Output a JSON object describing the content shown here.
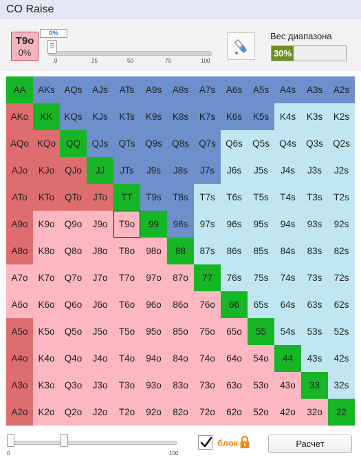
{
  "window": {
    "title": "CO Raise"
  },
  "selected_hand": {
    "name": "T9o",
    "percent": "0%"
  },
  "frequency_slider": {
    "value_label": "0%",
    "value": 0,
    "ticks": [
      "0",
      "25",
      "50",
      "75",
      "100"
    ]
  },
  "weight": {
    "label": "Вес диапазона",
    "value_label": "30%",
    "value": 30
  },
  "grid": {
    "colors": {
      "g": "#17b626",
      "b": "#6d8fcc",
      "c": "#c0e7f1",
      "r": "#de6d6f",
      "p": "#fcb7c0"
    },
    "selected": "T9o",
    "rows": [
      [
        [
          "AA",
          "g"
        ],
        [
          "AKs",
          "b"
        ],
        [
          "AQs",
          "b"
        ],
        [
          "AJs",
          "b"
        ],
        [
          "ATs",
          "b"
        ],
        [
          "A9s",
          "b"
        ],
        [
          "A8s",
          "b"
        ],
        [
          "A7s",
          "b"
        ],
        [
          "A6s",
          "b"
        ],
        [
          "A5s",
          "b"
        ],
        [
          "A4s",
          "b"
        ],
        [
          "A3s",
          "b"
        ],
        [
          "A2s",
          "b"
        ]
      ],
      [
        [
          "AKo",
          "r"
        ],
        [
          "KK",
          "g"
        ],
        [
          "KQs",
          "b"
        ],
        [
          "KJs",
          "b"
        ],
        [
          "KTs",
          "b"
        ],
        [
          "K9s",
          "b"
        ],
        [
          "K8s",
          "b"
        ],
        [
          "K7s",
          "b"
        ],
        [
          "K6s",
          "b"
        ],
        [
          "K5s",
          "b"
        ],
        [
          "K4s",
          "c"
        ],
        [
          "K3s",
          "c"
        ],
        [
          "K2s",
          "c"
        ]
      ],
      [
        [
          "AQo",
          "r"
        ],
        [
          "KQo",
          "r"
        ],
        [
          "QQ",
          "g"
        ],
        [
          "QJs",
          "b"
        ],
        [
          "QTs",
          "b"
        ],
        [
          "Q9s",
          "b"
        ],
        [
          "Q8s",
          "b"
        ],
        [
          "Q7s",
          "b"
        ],
        [
          "Q6s",
          "c"
        ],
        [
          "Q5s",
          "c"
        ],
        [
          "Q4s",
          "c"
        ],
        [
          "Q3s",
          "c"
        ],
        [
          "Q2s",
          "c"
        ]
      ],
      [
        [
          "AJo",
          "r"
        ],
        [
          "KJo",
          "r"
        ],
        [
          "QJo",
          "r"
        ],
        [
          "JJ",
          "g"
        ],
        [
          "JTs",
          "b"
        ],
        [
          "J9s",
          "b"
        ],
        [
          "J8s",
          "b"
        ],
        [
          "J7s",
          "b"
        ],
        [
          "J6s",
          "c"
        ],
        [
          "J5s",
          "c"
        ],
        [
          "J4s",
          "c"
        ],
        [
          "J3s",
          "c"
        ],
        [
          "J2s",
          "c"
        ]
      ],
      [
        [
          "ATo",
          "r"
        ],
        [
          "KTo",
          "r"
        ],
        [
          "QTo",
          "r"
        ],
        [
          "JTo",
          "r"
        ],
        [
          "TT",
          "g"
        ],
        [
          "T9s",
          "b"
        ],
        [
          "T8s",
          "b"
        ],
        [
          "T7s",
          "c"
        ],
        [
          "T6s",
          "c"
        ],
        [
          "T5s",
          "c"
        ],
        [
          "T4s",
          "c"
        ],
        [
          "T3s",
          "c"
        ],
        [
          "T2s",
          "c"
        ]
      ],
      [
        [
          "A9o",
          "r"
        ],
        [
          "K9o",
          "p"
        ],
        [
          "Q9o",
          "p"
        ],
        [
          "J9o",
          "p"
        ],
        [
          "T9o",
          "p"
        ],
        [
          "99",
          "g"
        ],
        [
          "98s",
          "b"
        ],
        [
          "97s",
          "c"
        ],
        [
          "96s",
          "c"
        ],
        [
          "95s",
          "c"
        ],
        [
          "94s",
          "c"
        ],
        [
          "93s",
          "c"
        ],
        [
          "92s",
          "c"
        ]
      ],
      [
        [
          "A8o",
          "r"
        ],
        [
          "K8o",
          "p"
        ],
        [
          "Q8o",
          "p"
        ],
        [
          "J8o",
          "p"
        ],
        [
          "T8o",
          "p"
        ],
        [
          "98o",
          "p"
        ],
        [
          "88",
          "g"
        ],
        [
          "87s",
          "c"
        ],
        [
          "86s",
          "c"
        ],
        [
          "85s",
          "c"
        ],
        [
          "84s",
          "c"
        ],
        [
          "83s",
          "c"
        ],
        [
          "82s",
          "c"
        ]
      ],
      [
        [
          "A7o",
          "p"
        ],
        [
          "K7o",
          "p"
        ],
        [
          "Q7o",
          "p"
        ],
        [
          "J7o",
          "p"
        ],
        [
          "T7o",
          "p"
        ],
        [
          "97o",
          "p"
        ],
        [
          "87o",
          "p"
        ],
        [
          "77",
          "g"
        ],
        [
          "76s",
          "c"
        ],
        [
          "75s",
          "c"
        ],
        [
          "74s",
          "c"
        ],
        [
          "73s",
          "c"
        ],
        [
          "72s",
          "c"
        ]
      ],
      [
        [
          "A6o",
          "p"
        ],
        [
          "K6o",
          "p"
        ],
        [
          "Q6o",
          "p"
        ],
        [
          "J6o",
          "p"
        ],
        [
          "T6o",
          "p"
        ],
        [
          "96o",
          "p"
        ],
        [
          "86o",
          "p"
        ],
        [
          "76o",
          "p"
        ],
        [
          "66",
          "g"
        ],
        [
          "65s",
          "c"
        ],
        [
          "64s",
          "c"
        ],
        [
          "63s",
          "c"
        ],
        [
          "62s",
          "c"
        ]
      ],
      [
        [
          "A5o",
          "r"
        ],
        [
          "K5o",
          "p"
        ],
        [
          "Q5o",
          "p"
        ],
        [
          "J5o",
          "p"
        ],
        [
          "T5o",
          "p"
        ],
        [
          "95o",
          "p"
        ],
        [
          "85o",
          "p"
        ],
        [
          "75o",
          "p"
        ],
        [
          "65o",
          "p"
        ],
        [
          "55",
          "g"
        ],
        [
          "54s",
          "c"
        ],
        [
          "53s",
          "c"
        ],
        [
          "52s",
          "c"
        ]
      ],
      [
        [
          "A4o",
          "r"
        ],
        [
          "K4o",
          "p"
        ],
        [
          "Q4o",
          "p"
        ],
        [
          "J4o",
          "p"
        ],
        [
          "T4o",
          "p"
        ],
        [
          "94o",
          "p"
        ],
        [
          "84o",
          "p"
        ],
        [
          "74o",
          "p"
        ],
        [
          "64o",
          "p"
        ],
        [
          "54o",
          "p"
        ],
        [
          "44",
          "g"
        ],
        [
          "43s",
          "c"
        ],
        [
          "42s",
          "c"
        ]
      ],
      [
        [
          "A3o",
          "r"
        ],
        [
          "K3o",
          "p"
        ],
        [
          "Q3o",
          "p"
        ],
        [
          "J3o",
          "p"
        ],
        [
          "T3o",
          "p"
        ],
        [
          "93o",
          "p"
        ],
        [
          "83o",
          "p"
        ],
        [
          "73o",
          "p"
        ],
        [
          "63o",
          "p"
        ],
        [
          "53o",
          "p"
        ],
        [
          "43o",
          "p"
        ],
        [
          "33",
          "g"
        ],
        [
          "32s",
          "c"
        ]
      ],
      [
        [
          "A2o",
          "r"
        ],
        [
          "K2o",
          "p"
        ],
        [
          "Q2o",
          "p"
        ],
        [
          "J2o",
          "p"
        ],
        [
          "T2o",
          "p"
        ],
        [
          "92o",
          "p"
        ],
        [
          "82o",
          "p"
        ],
        [
          "72o",
          "p"
        ],
        [
          "62o",
          "p"
        ],
        [
          "52o",
          "p"
        ],
        [
          "42o",
          "p"
        ],
        [
          "32o",
          "p"
        ],
        [
          "22",
          "g"
        ]
      ]
    ]
  },
  "range_slider": {
    "tick_min": "0",
    "tick_max": "100"
  },
  "block": {
    "label": "блок",
    "checked": true
  },
  "calc_button": {
    "label": "Расчет"
  }
}
